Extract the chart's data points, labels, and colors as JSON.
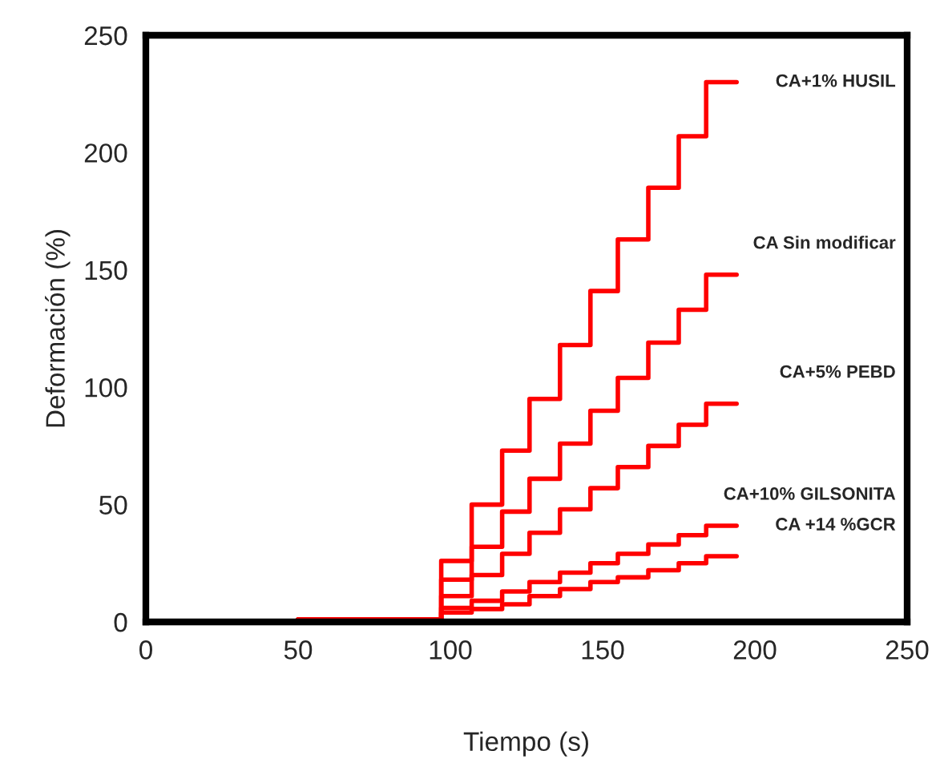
{
  "chart_data": {
    "type": "step",
    "xlabel": "Tiempo (s)",
    "ylabel": "Deformación (%)",
    "xlim": [
      0,
      250
    ],
    "xticks": [
      0,
      50,
      100,
      150,
      200,
      250
    ],
    "ylim": [
      0,
      250
    ],
    "yticks": [
      0,
      50,
      100,
      150,
      200,
      250
    ],
    "grid": false,
    "legend": false,
    "series": [
      {
        "name": "CA+1% HUSIL",
        "color": "#ff0000",
        "x": [
          0,
          50,
          97,
          107,
          117,
          126,
          136,
          146,
          155,
          165,
          175,
          184,
          194
        ],
        "values": [
          0,
          1,
          26,
          50,
          73,
          95,
          118,
          141,
          163,
          185,
          207,
          230,
          230
        ]
      },
      {
        "name": "CA Sin modificar",
        "color": "#ff0000",
        "x": [
          0,
          50,
          97,
          107,
          117,
          126,
          136,
          146,
          155,
          165,
          175,
          184,
          194
        ],
        "values": [
          0,
          1,
          18,
          32,
          47,
          61,
          76,
          90,
          104,
          119,
          133,
          148,
          148
        ]
      },
      {
        "name": "CA+5% PEBD",
        "color": "#ff0000",
        "x": [
          0,
          50,
          97,
          107,
          117,
          126,
          136,
          146,
          155,
          165,
          175,
          184,
          194
        ],
        "values": [
          0,
          1,
          11,
          20,
          29,
          38,
          48,
          57,
          66,
          75,
          84,
          93,
          93
        ]
      },
      {
        "name": "CA+10% GILSONITA",
        "color": "#ff0000",
        "x": [
          0,
          50,
          97,
          107,
          117,
          126,
          136,
          146,
          155,
          165,
          175,
          184,
          194
        ],
        "values": [
          0,
          1,
          6,
          9,
          13,
          17,
          21,
          25,
          29,
          33,
          37,
          41,
          41
        ]
      },
      {
        "name": "CA +14 %GCR",
        "color": "#ff0000",
        "x": [
          0,
          50,
          97,
          107,
          117,
          126,
          136,
          146,
          155,
          165,
          175,
          184,
          194
        ],
        "values": [
          0,
          1,
          4,
          5.5,
          7.5,
          11,
          14,
          17,
          19,
          22,
          25,
          28,
          28
        ]
      }
    ]
  }
}
